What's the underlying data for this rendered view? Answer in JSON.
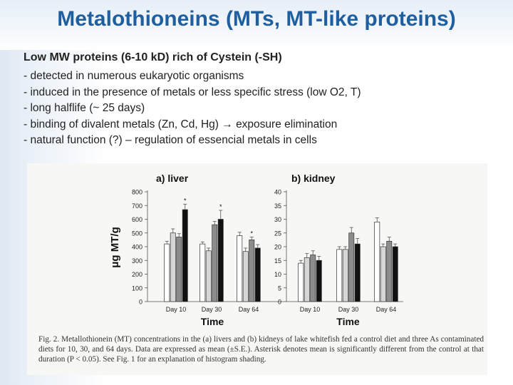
{
  "slide": {
    "title": "Metalothioneins (MTs, MT-like proteins)",
    "subtitle": "Low MW proteins (6-10 kD) rich of Cystein (-SH)",
    "bullets": [
      "- detected in numerous eukaryotic organisms",
      "- induced in the presence of metals or less specific stress (low O2, T)",
      "- long halflife (~ 25 days)",
      "- binding of divalent metals (Zn, Cd, Hg) → exposure elimination",
      "- natural function (?) – regulation of essencial metals in cells"
    ]
  },
  "figure": {
    "caption": "Fig. 2. Metallothionein (MT) concentrations in the (a) livers and (b) kidneys of lake whitefish fed a control diet and three As contaminated diets for 10, 30, and 64 days. Data are expressed as mean (±S.E.). Asterisk denotes mean is significantly different from the control at that duration (P < 0.05). See Fig. 1 for an explanation of histogram shading."
  },
  "chart_data": [
    {
      "type": "bar",
      "title": "a) liver",
      "ylabel": "μg MT/g",
      "xlabel": "Time",
      "categories": [
        "Day 10",
        "Day 30",
        "Day 64"
      ],
      "ylim": [
        0,
        800
      ],
      "yticks": [
        0,
        100,
        200,
        300,
        400,
        500,
        600,
        700,
        800
      ],
      "series": [
        {
          "fill": "#ffffff",
          "values": [
            420,
            420,
            480
          ],
          "errors": [
            20,
            15,
            25
          ],
          "sig": [
            false,
            false,
            false
          ]
        },
        {
          "fill": "#d6d6d6",
          "values": [
            500,
            370,
            365
          ],
          "errors": [
            30,
            20,
            25
          ],
          "sig": [
            false,
            false,
            false
          ]
        },
        {
          "fill": "#8c8c8c",
          "values": [
            470,
            560,
            450
          ],
          "errors": [
            25,
            25,
            20
          ],
          "sig": [
            false,
            false,
            true
          ]
        },
        {
          "fill": "#111111",
          "values": [
            670,
            600,
            390
          ],
          "errors": [
            40,
            65,
            25
          ],
          "sig": [
            true,
            true,
            false
          ]
        }
      ],
      "series_color_notes": "white, light gray, dark gray, black"
    },
    {
      "type": "bar",
      "title": "b) kidney",
      "xlabel": "Time",
      "categories": [
        "Day 10",
        "Day 30",
        "Day 64"
      ],
      "category_labels": [
        "Day 10",
        "Day 30",
        "Day 64"
      ],
      "ylim": [
        0,
        40
      ],
      "yticks": [
        0,
        5,
        10,
        15,
        20,
        25,
        30,
        35,
        40
      ],
      "series": [
        {
          "fill": "#ffffff",
          "values": [
            14,
            19,
            29
          ],
          "errors": [
            1,
            1,
            1.5
          ],
          "sig": [
            false,
            false,
            false
          ]
        },
        {
          "fill": "#d6d6d6",
          "values": [
            16,
            19,
            20
          ],
          "errors": [
            1.5,
            1,
            1
          ],
          "sig": [
            false,
            false,
            false
          ]
        },
        {
          "fill": "#8c8c8c",
          "values": [
            17,
            25,
            22
          ],
          "errors": [
            1.5,
            2,
            1.5
          ],
          "sig": [
            false,
            false,
            false
          ]
        },
        {
          "fill": "#111111",
          "values": [
            15,
            21,
            20
          ],
          "errors": [
            1.5,
            2,
            1
          ],
          "sig": [
            false,
            false,
            false
          ]
        }
      ]
    }
  ],
  "kidney_last_label_shown": "Day 64"
}
